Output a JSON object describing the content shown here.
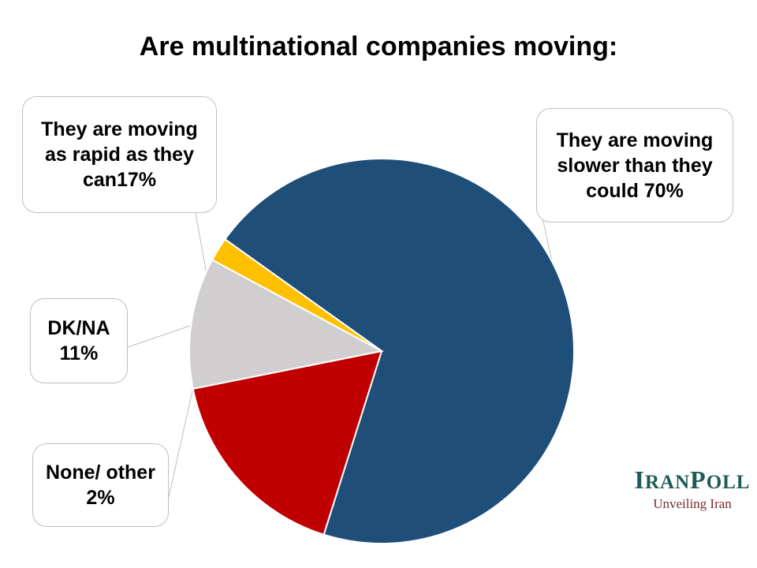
{
  "chart_data": {
    "type": "pie",
    "title": "Are multinational companies moving:",
    "slices": [
      {
        "label": "They are moving slower than they could 70%",
        "value": 70,
        "color": "#1f4e79"
      },
      {
        "label": "They are moving as rapid as they can17%",
        "value": 17,
        "color": "#c00000"
      },
      {
        "label": "DK/NA 11%",
        "value": 11,
        "color": "#d0cece"
      },
      {
        "label": "None/ other 2%",
        "value": 2,
        "color": "#ffc000"
      }
    ]
  },
  "logo": {
    "name_first_big": "I",
    "name_first_small": "RAN",
    "name_second_big": "P",
    "name_second_small": "OLL",
    "tagline": "Unveiling Iran"
  }
}
